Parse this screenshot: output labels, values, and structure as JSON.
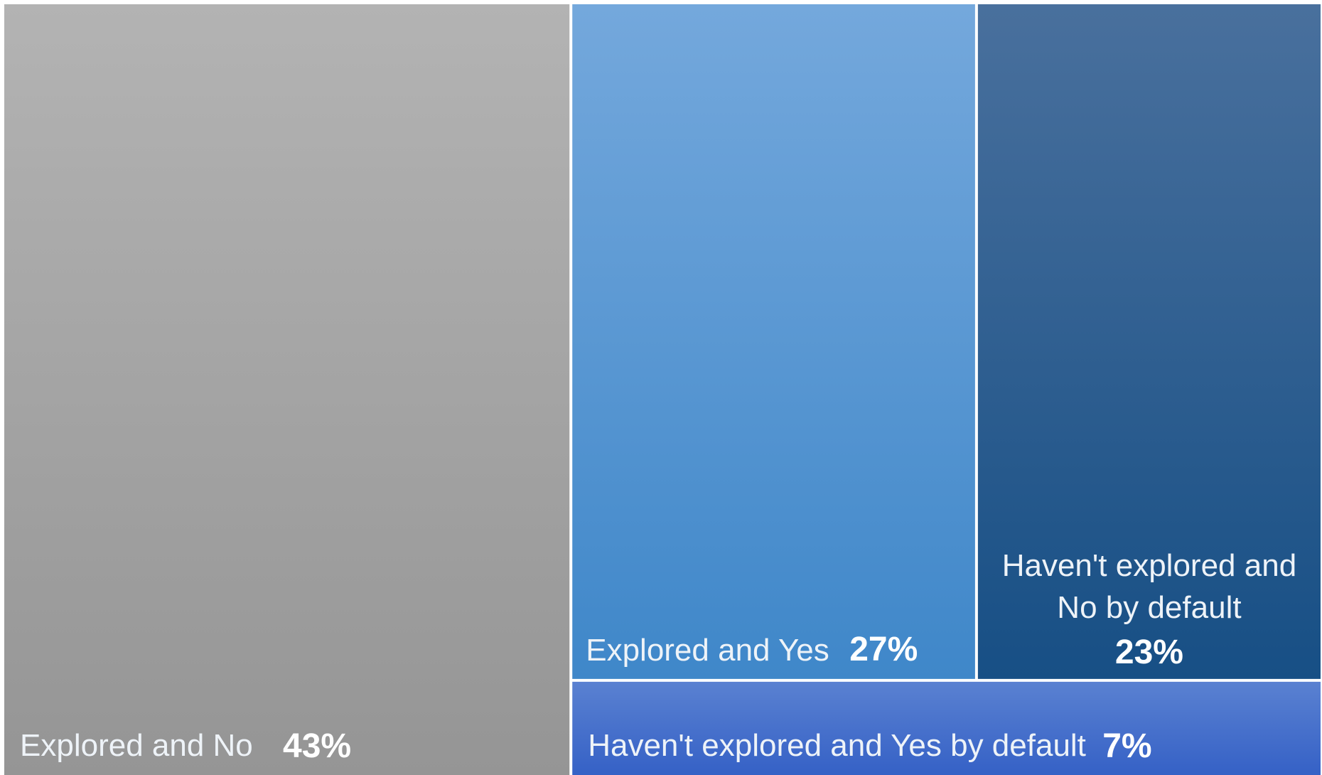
{
  "chart_data": {
    "type": "treemap",
    "title": "",
    "items": [
      {
        "name": "Explored and No",
        "value": 43,
        "value_label": "43%",
        "label_lines": [
          "Explored and No"
        ],
        "color": "#a6a6a6",
        "color_top": "#b3b3b3",
        "color_bottom": "#959595"
      },
      {
        "name": "Explored and Yes",
        "value": 27,
        "value_label": "27%",
        "label_lines": [
          "Explored and Yes"
        ],
        "color": "#5b9bd5",
        "color_top": "#74a8dc",
        "color_bottom": "#3f87c9"
      },
      {
        "name": "Haven't explored and No by default",
        "value": 23,
        "value_label": "23%",
        "label_lines": [
          "Haven't explored and",
          "No by default"
        ],
        "color": "#255e91",
        "color_top": "#49709d",
        "color_bottom": "#174f85"
      },
      {
        "name": "Haven't explored and Yes by default",
        "value": 7,
        "value_label": "7%",
        "label_lines": [
          "Haven't explored and Yes by default"
        ],
        "color": "#4472c4",
        "color_top": "#5a81d1",
        "color_bottom": "#3561c6"
      }
    ]
  }
}
